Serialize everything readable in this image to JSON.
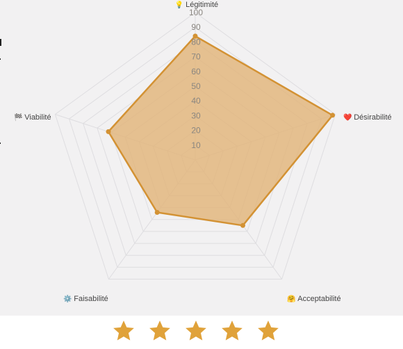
{
  "chart_data": {
    "type": "radar",
    "axes": [
      {
        "label": "Légitimité",
        "icon": "lightbulb-icon",
        "glyph": "💡"
      },
      {
        "label": "Désirabilité",
        "icon": "heart-icon",
        "glyph": "❤️"
      },
      {
        "label": "Acceptabilité",
        "icon": "hugging-face-icon",
        "glyph": "🤗"
      },
      {
        "label": "Faisabilité",
        "icon": "gear-icon",
        "glyph": "⚙️"
      },
      {
        "label": "Viabilité",
        "icon": "checkered-flag-icon",
        "glyph": "🏁"
      }
    ],
    "series": [
      {
        "values": [
          84,
          98,
          55,
          44,
          62
        ]
      }
    ],
    "ticks": [
      "10",
      "20",
      "30",
      "40",
      "50",
      "60",
      "70",
      "80",
      "90",
      "100"
    ],
    "range": [
      0,
      100
    ],
    "grid": "pentagon rings every 10",
    "colors": {
      "fill": "#e2b57a",
      "stroke": "#d39234",
      "grid": "#dedde0",
      "tick_text": "#8a8680",
      "axis_label": "#444444",
      "background": "#f2f1f2"
    }
  },
  "rating": {
    "stars": 5,
    "max": 5,
    "star_color": "#e0a23a",
    "icon": "star-icon"
  }
}
